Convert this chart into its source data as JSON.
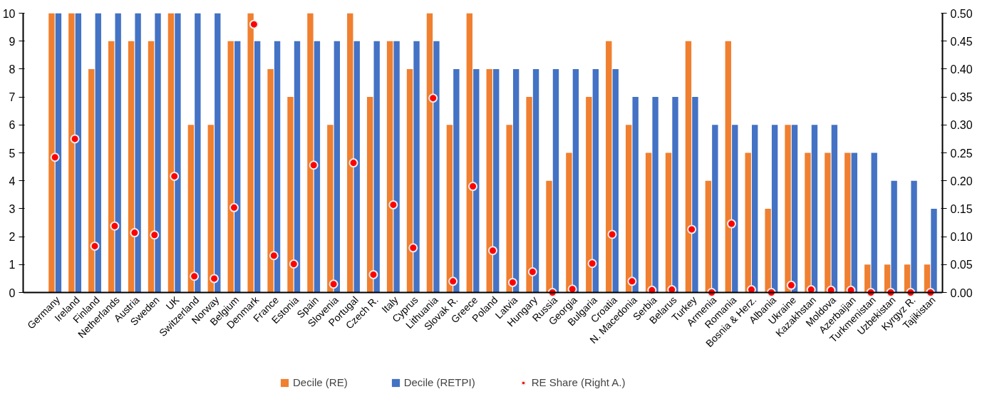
{
  "chart_data": {
    "type": "bar",
    "categories": [
      "Germany",
      "Ireland",
      "Finland",
      "Netherlands",
      "Austria",
      "Sweden",
      "UK",
      "Switzerland",
      "Norway",
      "Belgium",
      "Denmark",
      "France",
      "Estonia",
      "Spain",
      "Slovenia",
      "Portugal",
      "Czech R.",
      "Italy",
      "Cyprus",
      "Lithuania",
      "Slovak R.",
      "Greece",
      "Poland",
      "Latvia",
      "Hungary",
      "Russia",
      "Georgia",
      "Bulgaria",
      "Croatia",
      "N. Macedonia",
      "Serbia",
      "Belarus",
      "Turkey",
      "Armenia",
      "Romania",
      "Bosnia & Herz.",
      "Albania",
      "Ukraine",
      "Kazakhstan",
      "Moldova",
      "Azerbaijan",
      "Turkmenistan",
      "Uzbekistan",
      "Kyrgyz R.",
      "Tajikistan"
    ],
    "series": [
      {
        "name": "Decile (RE)",
        "color": "#f07f2f",
        "values": [
          10,
          10,
          8,
          9,
          9,
          9,
          10,
          6,
          6,
          9,
          10,
          8,
          7,
          10,
          6,
          10,
          7,
          9,
          8,
          10,
          6,
          10,
          8,
          6,
          7,
          4,
          5,
          7,
          9,
          6,
          5,
          5,
          9,
          4,
          9,
          5,
          3,
          6,
          5,
          5,
          5,
          1,
          1,
          1,
          1
        ]
      },
      {
        "name": "Decile (RETPI)",
        "color": "#4472c4",
        "values": [
          10,
          10,
          10,
          10,
          10,
          10,
          10,
          10,
          10,
          9,
          9,
          9,
          9,
          9,
          9,
          9,
          9,
          9,
          9,
          9,
          8,
          8,
          8,
          8,
          8,
          8,
          8,
          8,
          8,
          7,
          7,
          7,
          7,
          6,
          6,
          6,
          6,
          6,
          6,
          6,
          5,
          5,
          4,
          4,
          3
        ]
      },
      {
        "name": "RE Share (Right A.)",
        "type": "scatter",
        "axis": "y2",
        "marker": "circle",
        "color": "#ff0000",
        "values": [
          0.242,
          0.275,
          0.083,
          0.119,
          0.107,
          0.103,
          0.208,
          0.029,
          0.025,
          0.152,
          0.48,
          0.066,
          0.051,
          0.228,
          0.015,
          0.232,
          0.032,
          0.157,
          0.08,
          0.348,
          0.02,
          0.19,
          0.075,
          0.018,
          0.037,
          0.0,
          0.006,
          0.052,
          0.104,
          0.02,
          0.004,
          0.005,
          0.113,
          0.0,
          0.123,
          0.005,
          0.0,
          0.013,
          0.005,
          0.004,
          0.004,
          0.0,
          0.0,
          0.0,
          0.0
        ]
      }
    ],
    "ylim": [
      0,
      10
    ],
    "yticks": [
      0,
      1,
      2,
      3,
      4,
      5,
      6,
      7,
      8,
      9,
      10
    ],
    "y2lim": [
      0,
      0.5
    ],
    "y2ticks": [
      {
        "value": 0,
        "label": "0.00"
      },
      {
        "value": 0.05,
        "label": "0.05"
      },
      {
        "value": 0.1,
        "label": "0.10"
      },
      {
        "value": 0.15,
        "label": "0.15"
      },
      {
        "value": 0.2,
        "label": "0.20"
      },
      {
        "value": 0.25,
        "label": "0.25"
      },
      {
        "value": 0.3,
        "label": "0.30"
      },
      {
        "value": 0.35,
        "label": "0.35"
      },
      {
        "value": 0.4,
        "label": "0.40"
      },
      {
        "value": 0.45,
        "label": "0.45"
      },
      {
        "value": 0.5,
        "label": "0.50"
      }
    ],
    "legend": "bottom",
    "grid": false
  }
}
